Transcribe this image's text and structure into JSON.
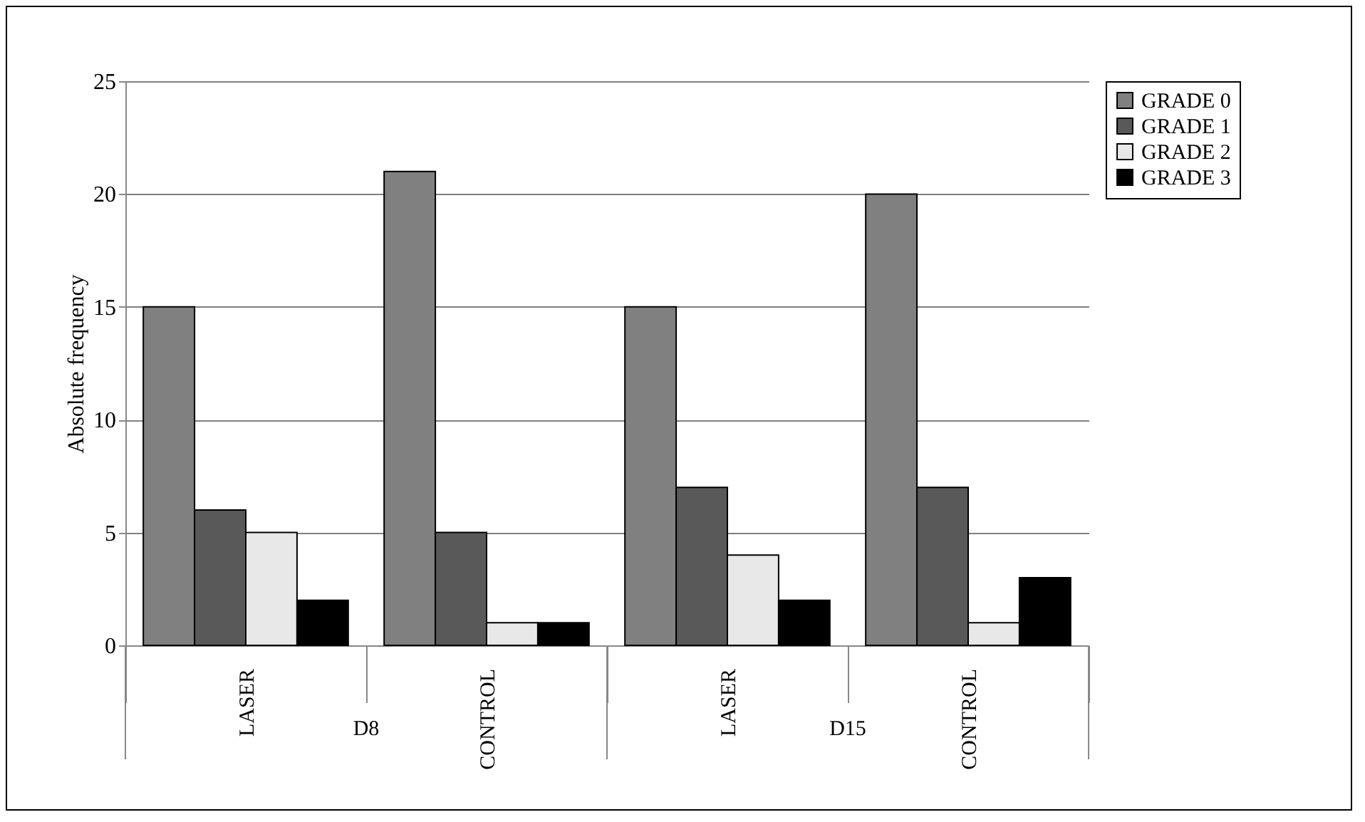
{
  "chart_data": {
    "type": "bar",
    "ylabel": "Absolute frequency",
    "categories": [
      "LASER",
      "CONTROL",
      "LASER",
      "CONTROL"
    ],
    "annotations": [
      "D8",
      "D15"
    ],
    "series": [
      {
        "name": "GRADE 0",
        "color": "#808080",
        "values": [
          15,
          21,
          15,
          20
        ]
      },
      {
        "name": "GRADE 1",
        "color": "#595959",
        "values": [
          6,
          5,
          7,
          7
        ]
      },
      {
        "name": "GRADE 2",
        "color": "#e8e8e8",
        "values": [
          5,
          1,
          4,
          1
        ]
      },
      {
        "name": "GRADE 3",
        "color": "#000000",
        "values": [
          2,
          1,
          2,
          3
        ]
      }
    ],
    "ylim": [
      0,
      25
    ],
    "yticks": [
      0,
      5,
      10,
      15,
      20,
      25
    ],
    "grid": "y",
    "legend": "right"
  }
}
